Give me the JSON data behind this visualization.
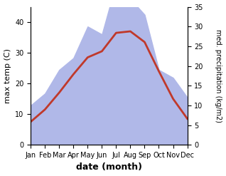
{
  "months": [
    "Jan",
    "Feb",
    "Mar",
    "Apr",
    "May",
    "Jun",
    "Jul",
    "Aug",
    "Sep",
    "Oct",
    "Nov",
    "Dec"
  ],
  "month_indices": [
    0,
    1,
    2,
    3,
    4,
    5,
    6,
    7,
    8,
    9,
    10,
    11
  ],
  "temp_max": [
    7.5,
    11.5,
    17.0,
    23.0,
    28.5,
    30.5,
    36.5,
    37.0,
    33.5,
    24.0,
    15.0,
    8.5
  ],
  "precip": [
    10,
    13,
    19,
    22,
    30,
    28,
    41,
    37,
    33,
    19,
    17,
    12
  ],
  "temp_color": "#c0392b",
  "precip_color": "#b0b8e8",
  "temp_ylim": [
    0,
    45
  ],
  "precip_ylim": [
    0,
    35
  ],
  "temp_yticks": [
    0,
    10,
    20,
    30,
    40
  ],
  "precip_yticks": [
    0,
    5,
    10,
    15,
    20,
    25,
    30,
    35
  ],
  "ylabel_left": "max temp (C)",
  "ylabel_right": "med. precipitation (kg/m2)",
  "xlabel": "date (month)",
  "background_color": "#ffffff",
  "figure_width": 3.18,
  "figure_height": 2.47,
  "dpi": 100
}
